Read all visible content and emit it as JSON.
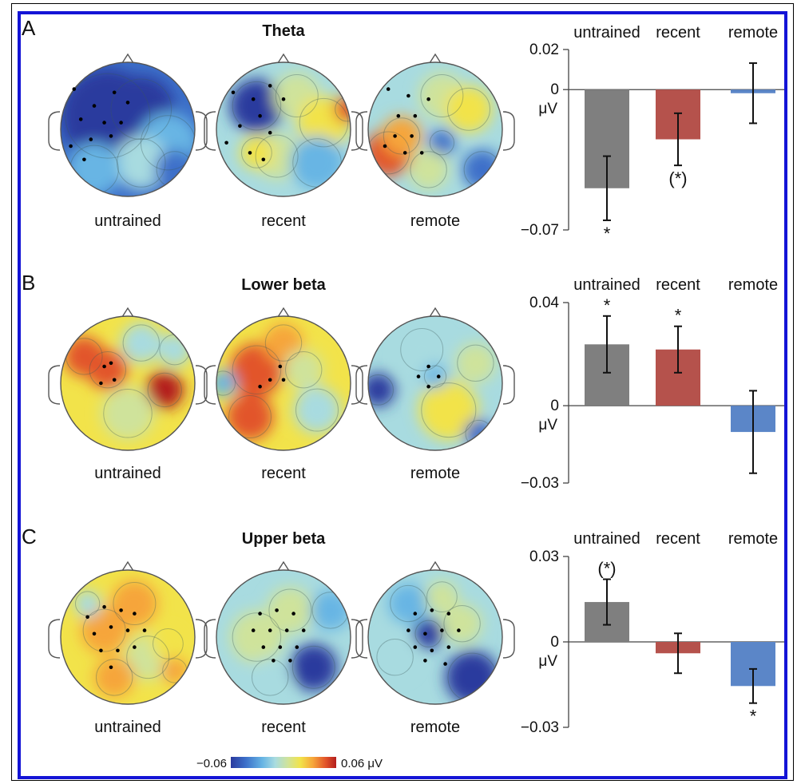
{
  "panels": [
    {
      "letter": "A",
      "title": "Theta",
      "map_labels": [
        "untrained",
        "recent",
        "remote"
      ],
      "chart_data": {
        "type": "bar",
        "categories": [
          "untrained",
          "recent",
          "remote"
        ],
        "values": [
          -0.0492,
          -0.0248,
          -0.0018
        ],
        "errors": [
          0.016,
          0.013,
          0.015
        ],
        "significance": [
          "*",
          "(*)",
          ""
        ],
        "colors": [
          "#7f7f7f",
          "#b5524c",
          "#5b86c8"
        ],
        "ylim": [
          -0.07,
          0.02
        ],
        "yticks": [
          0.02,
          0,
          -0.07
        ],
        "yticklabels": [
          "0.02",
          "0",
          "−0.07"
        ],
        "ylabel": "μV"
      }
    },
    {
      "letter": "B",
      "title": "Lower beta",
      "map_labels": [
        "untrained",
        "recent",
        "remote"
      ],
      "chart_data": {
        "type": "bar",
        "categories": [
          "untrained",
          "recent",
          "remote"
        ],
        "values": [
          0.0238,
          0.0218,
          -0.0102
        ],
        "errors": [
          0.011,
          0.009,
          0.016
        ],
        "significance": [
          "*",
          "*",
          ""
        ],
        "colors": [
          "#7f7f7f",
          "#b5524c",
          "#5b86c8"
        ],
        "ylim": [
          -0.03,
          0.04
        ],
        "yticks": [
          0.04,
          0,
          -0.03
        ],
        "yticklabels": [
          "0.04",
          "0",
          "−0.03"
        ],
        "ylabel": "μV"
      }
    },
    {
      "letter": "C",
      "title": "Upper beta",
      "map_labels": [
        "untrained",
        "recent",
        "remote"
      ],
      "chart_data": {
        "type": "bar",
        "categories": [
          "untrained",
          "recent",
          "remote"
        ],
        "values": [
          0.014,
          -0.004,
          -0.0155
        ],
        "errors": [
          0.008,
          0.007,
          0.006
        ],
        "significance": [
          "(*)",
          "",
          "*"
        ],
        "colors": [
          "#7f7f7f",
          "#b5524c",
          "#5b86c8"
        ],
        "ylim": [
          -0.03,
          0.03
        ],
        "yticks": [
          0.03,
          0,
          -0.03
        ],
        "yticklabels": [
          "0.03",
          "0",
          "−0.03"
        ],
        "ylabel": "μV"
      }
    }
  ],
  "colorbar": {
    "min_label": "−0.06",
    "max_label": "0.06 μV",
    "colors": [
      "#2a3a9e",
      "#3c6fc9",
      "#67b5e4",
      "#a8dbe0",
      "#cfe39b",
      "#f2e34a",
      "#f6a53a",
      "#e2542a",
      "#b31d1d"
    ]
  }
}
